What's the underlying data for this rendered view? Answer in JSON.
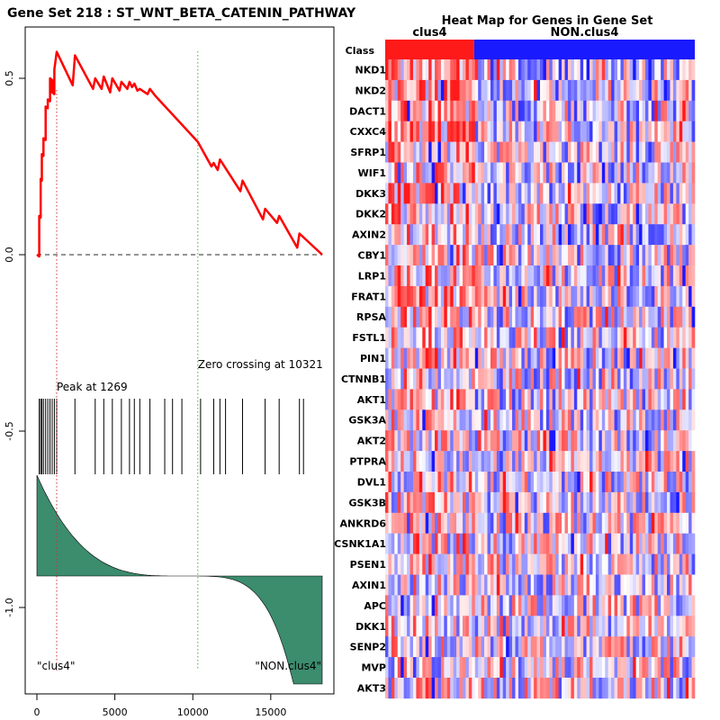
{
  "chart_data": [
    {
      "type": "line",
      "name": "enrichment-plot",
      "title": "Gene Set  218 : ST_WNT_BETA_CATENIN_PATHWAY",
      "x_ticks": [
        0,
        5000,
        10000,
        15000
      ],
      "y_ticks": [
        0.5,
        0.0,
        -0.5,
        -1.0
      ],
      "x_range": [
        0,
        18300
      ],
      "y_range": [
        -1.2,
        0.6
      ],
      "es_curve": {
        "x": [
          0,
          150,
          150,
          240,
          240,
          320,
          320,
          420,
          420,
          560,
          560,
          700,
          700,
          840,
          840,
          980,
          980,
          1120,
          1120,
          1269,
          2300,
          2440,
          3600,
          3740,
          4150,
          4290,
          4700,
          4840,
          5300,
          5420,
          5800,
          5940,
          6100,
          6250,
          6450,
          6600,
          7100,
          7250,
          7600,
          10321,
          11200,
          11340,
          11600,
          11740,
          13050,
          13190,
          14500,
          14640,
          15400,
          15540,
          16700,
          16840,
          18300
        ],
        "y": [
          0.0,
          -0.005,
          0.11,
          0.105,
          0.215,
          0.21,
          0.285,
          0.28,
          0.33,
          0.325,
          0.42,
          0.415,
          0.44,
          0.435,
          0.5,
          0.495,
          0.46,
          0.455,
          0.525,
          0.575,
          0.48,
          0.565,
          0.47,
          0.5,
          0.47,
          0.505,
          0.46,
          0.5,
          0.465,
          0.49,
          0.47,
          0.49,
          0.475,
          0.485,
          0.465,
          0.47,
          0.455,
          0.47,
          0.45,
          0.32,
          0.25,
          0.26,
          0.24,
          0.27,
          0.18,
          0.21,
          0.1,
          0.13,
          0.09,
          0.11,
          0.02,
          0.06,
          0.0
        ]
      },
      "hits": [
        150,
        240,
        320,
        420,
        560,
        700,
        840,
        980,
        1120,
        1269,
        2440,
        3740,
        4290,
        4840,
        5420,
        5940,
        6250,
        6600,
        7250,
        8200,
        8700,
        9300,
        10500,
        11340,
        11740,
        12100,
        13190,
        14640,
        15540,
        16840,
        17100
      ],
      "peak": {
        "x": 1269,
        "label": "Peak at 1269"
      },
      "zero_crossing": {
        "x": 10321,
        "label": "Zero crossing at 10321"
      },
      "ranked_metric": {
        "start": 0.19,
        "end": -0.56
      },
      "class_labels": {
        "left": "\"clus4\"",
        "right": "\"NON.clus4\""
      },
      "colors": {
        "curve": "#ff0000",
        "ranked": "#3c8c6e",
        "peak_line": "#cc3333",
        "zero_line": "#33bb33"
      }
    },
    {
      "type": "heatmap",
      "name": "heat-map",
      "title": "Heat Map for Genes in Gene Set",
      "class_row_label": "Class",
      "classes": [
        {
          "name": "clus4",
          "color": "#ff1a1a",
          "fraction": 0.2875
        },
        {
          "name": "NON.clus4",
          "color": "#1a1aff",
          "fraction": 0.7125
        }
      ],
      "n_columns": 100,
      "seed": 218,
      "genes": [
        "NKD1",
        "NKD2",
        "DACT1",
        "CXXC4",
        "SFRP1",
        "WIF1",
        "DKK3",
        "DKK2",
        "AXIN2",
        "CBY1",
        "LRP1",
        "FRAT1",
        "RPSA",
        "FSTL1",
        "PIN1",
        "CTNNB1",
        "AKT1",
        "GSK3A",
        "AKT2",
        "PTPRA",
        "DVL1",
        "GSK3B",
        "ANKRD6",
        "CSNK1A1",
        "PSEN1",
        "AXIN1",
        "APC",
        "DKK1",
        "SENP2",
        "MVP",
        "AKT3"
      ]
    }
  ]
}
